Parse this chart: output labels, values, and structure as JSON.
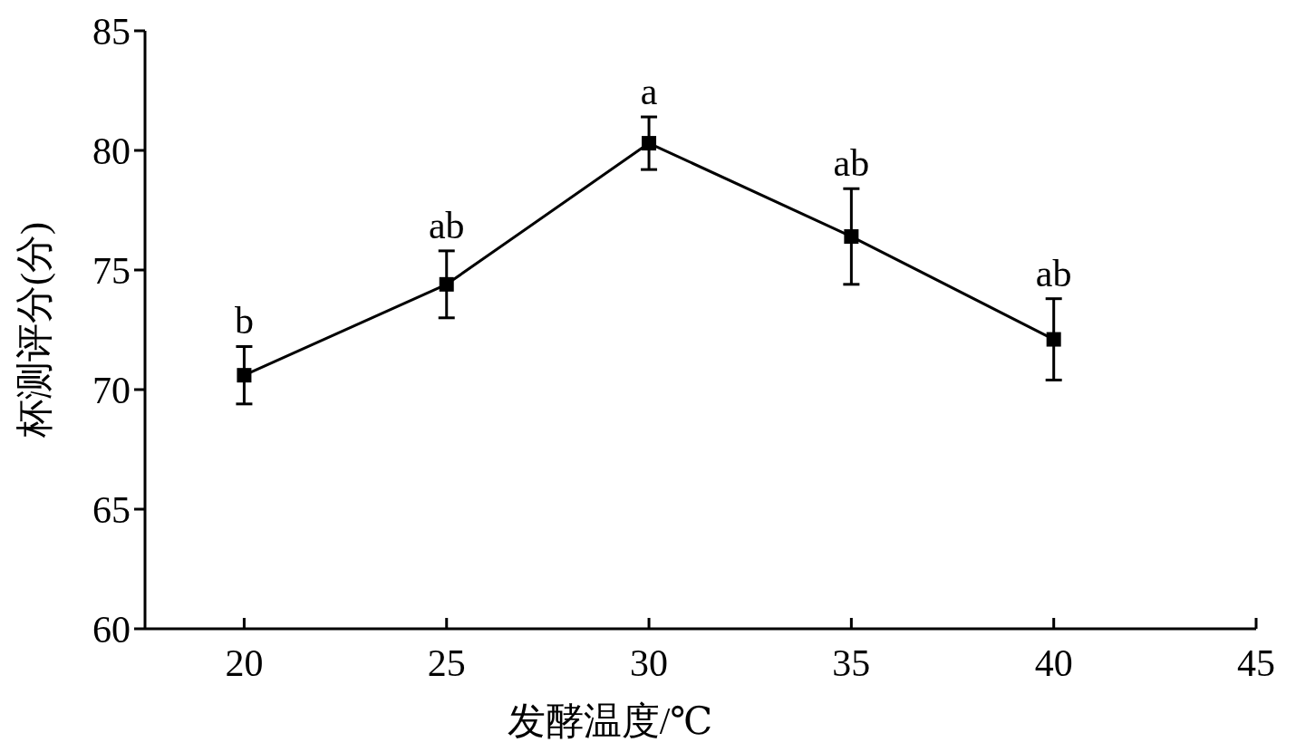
{
  "chart_data": {
    "type": "line",
    "xlabel": "发酵温度/℃",
    "ylabel": "杯测评分(分)",
    "x": [
      20,
      25,
      30,
      35,
      40
    ],
    "series": [
      {
        "color": "#000000",
        "values": [
          70.6,
          74.4,
          80.3,
          76.4,
          72.1
        ],
        "errors": [
          1.2,
          1.4,
          1.1,
          2.0,
          1.7
        ]
      }
    ],
    "xlim": [
      17.55,
      45
    ],
    "xticks": [
      20,
      25,
      30,
      35,
      40,
      45
    ],
    "ylim": [
      60,
      85
    ],
    "yticks": [
      60,
      65,
      70,
      75,
      80,
      85
    ],
    "marker": "square",
    "line_style": "solid",
    "annotations": [
      {
        "text": "b",
        "x": 20,
        "y": 71.8
      },
      {
        "text": "ab",
        "x": 25,
        "y": 75.8
      },
      {
        "text": "a",
        "x": 30,
        "y": 81.4
      },
      {
        "text": "ab",
        "x": 35,
        "y": 78.4
      },
      {
        "text": "ab",
        "x": 40,
        "y": 73.8
      }
    ]
  }
}
